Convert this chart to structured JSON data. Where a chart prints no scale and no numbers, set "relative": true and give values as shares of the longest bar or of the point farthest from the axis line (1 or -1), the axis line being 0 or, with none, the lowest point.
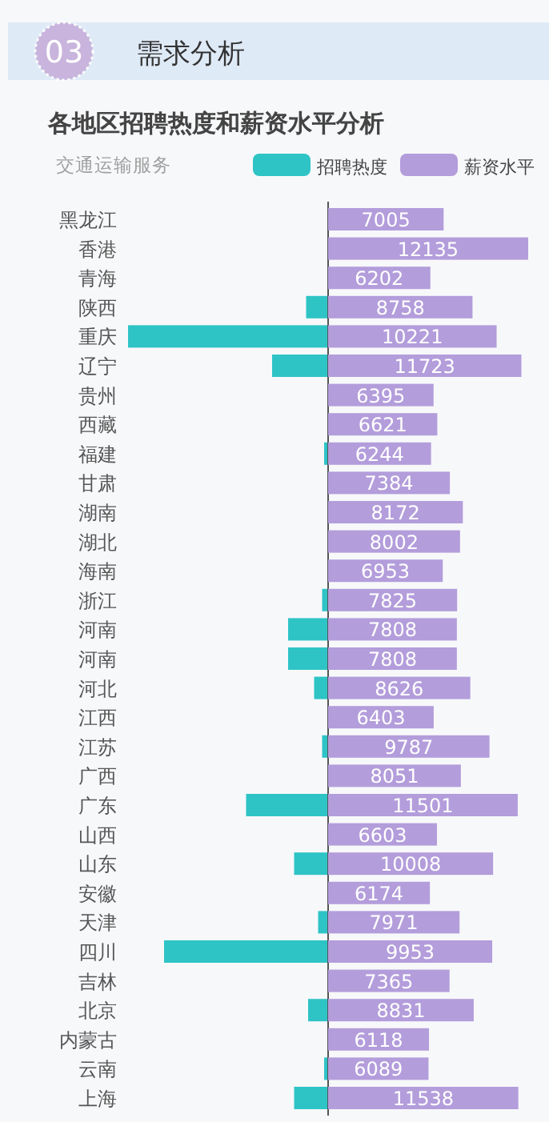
{
  "chart_data": [
    {
      "type": "bar",
      "orientation": "horizontal",
      "relative": true,
      "tick_labels": "y",
      "legend": "top right",
      "title": "各地区招聘热度和薪资水平分析",
      "subtitle": "交通运输服务",
      "annotations": [
        "03",
        "需求分析"
      ],
      "categories": [
        "黑龙江",
        "香港",
        "青海",
        "陕西",
        "重庆",
        "辽宁",
        "贵州",
        "西藏",
        "福建",
        "甘肃",
        "湖南",
        "湖北",
        "海南",
        "浙江",
        "河南",
        "河南",
        "河北",
        "江西",
        "江苏",
        "广西",
        "广东",
        "山西",
        "山东",
        "安徽",
        "天津",
        "四川",
        "吉林",
        "北京",
        "内蒙古",
        "云南",
        "上海"
      ],
      "series": [
        {
          "name": "招聘热度",
          "color": "#2ec4c6",
          "values": [
            0,
            0,
            0,
            -0.11,
            -1,
            -0.28,
            0,
            0,
            -0.02,
            0,
            0,
            null,
            0,
            -0.03,
            -0.2,
            -0.2,
            -0.07,
            null,
            -0.03,
            0,
            -0.41,
            0,
            -0.17,
            0,
            -0.05,
            -0.82,
            0,
            -0.1,
            0,
            -0.02,
            -0.17
          ]
        }
      ]
    },
    {
      "type": "bar",
      "orientation": "horizontal",
      "tick_labels": false,
      "legend": "top right",
      "data_labels": true,
      "categories": [
        null,
        null,
        null,
        null,
        null,
        null,
        null,
        null,
        null,
        null,
        null,
        null,
        null,
        null,
        null,
        null,
        null,
        null,
        null,
        null,
        null,
        null,
        null,
        null,
        null,
        null,
        null,
        null,
        null,
        null,
        null
      ],
      "series": [
        {
          "name": "薪资水平",
          "color": "#b39ddb",
          "values": [
            7005,
            12135,
            6202,
            8758,
            10221,
            11723,
            6395,
            6621,
            6244,
            7384,
            8172,
            8002,
            6953,
            7825,
            7808,
            7808,
            8626,
            6403,
            9787,
            8051,
            11501,
            6603,
            10008,
            6174,
            7971,
            9953,
            7365,
            8831,
            6118,
            6089,
            11538
          ]
        }
      ]
    }
  ]
}
